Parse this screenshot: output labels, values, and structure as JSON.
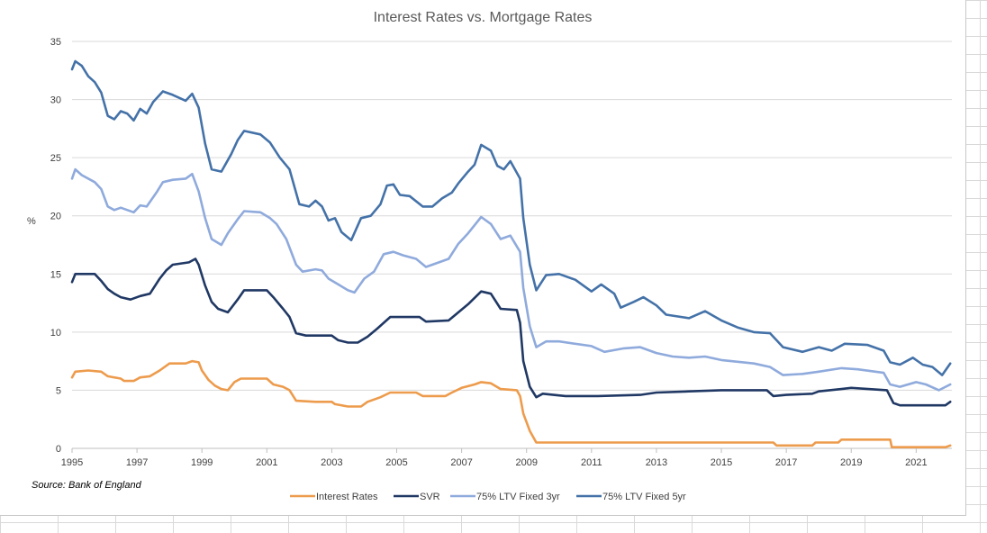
{
  "chart_data": {
    "type": "line",
    "title": "Interest Rates vs. Mortgage Rates",
    "ylabel": "%",
    "source": "Source: Bank of England",
    "ylim": [
      0,
      35
    ],
    "yticks": [
      0,
      5,
      10,
      15,
      20,
      25,
      30,
      35
    ],
    "xlim": [
      1995,
      2022.1
    ],
    "xticks": [
      1995,
      1997,
      1999,
      2001,
      2003,
      2005,
      2007,
      2009,
      2011,
      2013,
      2015,
      2017,
      2019,
      2021
    ],
    "grid": "horizontal",
    "legend_position": "bottom",
    "series": [
      {
        "name": "Interest Rates",
        "color": "#ed9b4c",
        "points": [
          [
            1995,
            6.1
          ],
          [
            1995.1,
            6.6
          ],
          [
            1995.5,
            6.7
          ],
          [
            1995.9,
            6.6
          ],
          [
            1996.1,
            6.2
          ],
          [
            1996.5,
            6.0
          ],
          [
            1996.6,
            5.8
          ],
          [
            1996.9,
            5.8
          ],
          [
            1997.1,
            6.1
          ],
          [
            1997.4,
            6.2
          ],
          [
            1997.7,
            6.7
          ],
          [
            1998,
            7.3
          ],
          [
            1998.5,
            7.3
          ],
          [
            1998.7,
            7.5
          ],
          [
            1998.9,
            7.4
          ],
          [
            1999,
            6.7
          ],
          [
            1999.2,
            5.9
          ],
          [
            1999.4,
            5.4
          ],
          [
            1999.6,
            5.1
          ],
          [
            1999.8,
            5.0
          ],
          [
            2000,
            5.7
          ],
          [
            2000.2,
            6.0
          ],
          [
            2001,
            6.0
          ],
          [
            2001.2,
            5.5
          ],
          [
            2001.5,
            5.3
          ],
          [
            2001.7,
            5.0
          ],
          [
            2001.9,
            4.1
          ],
          [
            2002.5,
            4.0
          ],
          [
            2003,
            4.0
          ],
          [
            2003.1,
            3.8
          ],
          [
            2003.5,
            3.6
          ],
          [
            2003.9,
            3.6
          ],
          [
            2004.1,
            4.0
          ],
          [
            2004.5,
            4.4
          ],
          [
            2004.8,
            4.8
          ],
          [
            2005.6,
            4.8
          ],
          [
            2005.8,
            4.5
          ],
          [
            2006.5,
            4.5
          ],
          [
            2006.7,
            4.8
          ],
          [
            2007,
            5.2
          ],
          [
            2007.4,
            5.5
          ],
          [
            2007.6,
            5.7
          ],
          [
            2007.9,
            5.6
          ],
          [
            2008.2,
            5.1
          ],
          [
            2008.7,
            5.0
          ],
          [
            2008.8,
            4.5
          ],
          [
            2008.9,
            3.0
          ],
          [
            2009.1,
            1.5
          ],
          [
            2009.3,
            0.5
          ],
          [
            2016.6,
            0.5
          ],
          [
            2016.7,
            0.25
          ],
          [
            2017.8,
            0.25
          ],
          [
            2017.9,
            0.5
          ],
          [
            2018.6,
            0.5
          ],
          [
            2018.7,
            0.75
          ],
          [
            2020.2,
            0.75
          ],
          [
            2020.25,
            0.1
          ],
          [
            2021.9,
            0.1
          ],
          [
            2022.05,
            0.25
          ]
        ]
      },
      {
        "name": "SVR",
        "color": "#203864",
        "points": [
          [
            1995,
            14.3
          ],
          [
            1995.1,
            15.0
          ],
          [
            1995.7,
            15.0
          ],
          [
            1995.9,
            14.4
          ],
          [
            1996.1,
            13.7
          ],
          [
            1996.3,
            13.3
          ],
          [
            1996.5,
            13.0
          ],
          [
            1996.8,
            12.8
          ],
          [
            1997.1,
            13.1
          ],
          [
            1997.4,
            13.3
          ],
          [
            1997.7,
            14.6
          ],
          [
            1997.9,
            15.3
          ],
          [
            1998.1,
            15.8
          ],
          [
            1998.6,
            16.0
          ],
          [
            1998.8,
            16.3
          ],
          [
            1998.9,
            15.8
          ],
          [
            1999.1,
            14.0
          ],
          [
            1999.3,
            12.6
          ],
          [
            1999.5,
            12.0
          ],
          [
            1999.8,
            11.7
          ],
          [
            2000.1,
            12.8
          ],
          [
            2000.3,
            13.6
          ],
          [
            2001,
            13.6
          ],
          [
            2001.2,
            13.0
          ],
          [
            2001.5,
            12.0
          ],
          [
            2001.7,
            11.3
          ],
          [
            2001.9,
            9.9
          ],
          [
            2002.2,
            9.7
          ],
          [
            2003,
            9.7
          ],
          [
            2003.2,
            9.3
          ],
          [
            2003.5,
            9.1
          ],
          [
            2003.8,
            9.1
          ],
          [
            2004.1,
            9.6
          ],
          [
            2004.4,
            10.3
          ],
          [
            2004.8,
            11.3
          ],
          [
            2005.7,
            11.3
          ],
          [
            2005.9,
            10.9
          ],
          [
            2006.6,
            11.0
          ],
          [
            2006.9,
            11.7
          ],
          [
            2007.2,
            12.4
          ],
          [
            2007.6,
            13.5
          ],
          [
            2007.9,
            13.3
          ],
          [
            2008.2,
            12.0
          ],
          [
            2008.7,
            11.9
          ],
          [
            2008.8,
            10.8
          ],
          [
            2008.9,
            7.5
          ],
          [
            2009.1,
            5.3
          ],
          [
            2009.3,
            4.4
          ],
          [
            2009.5,
            4.7
          ],
          [
            2010.2,
            4.5
          ],
          [
            2011.2,
            4.5
          ],
          [
            2012.5,
            4.6
          ],
          [
            2013,
            4.8
          ],
          [
            2014,
            4.9
          ],
          [
            2015,
            5.0
          ],
          [
            2016.4,
            5.0
          ],
          [
            2016.6,
            4.5
          ],
          [
            2017,
            4.6
          ],
          [
            2017.8,
            4.7
          ],
          [
            2018,
            4.9
          ],
          [
            2018.7,
            5.1
          ],
          [
            2019,
            5.2
          ],
          [
            2020.1,
            5.0
          ],
          [
            2020.3,
            3.9
          ],
          [
            2020.5,
            3.7
          ],
          [
            2021.9,
            3.7
          ],
          [
            2022.05,
            4.0
          ]
        ]
      },
      {
        "name": "75% LTV Fixed 3yr",
        "color": "#8faadc",
        "points": [
          [
            1995,
            23.2
          ],
          [
            1995.1,
            24.0
          ],
          [
            1995.3,
            23.5
          ],
          [
            1995.7,
            22.9
          ],
          [
            1995.9,
            22.3
          ],
          [
            1996.1,
            20.8
          ],
          [
            1996.3,
            20.5
          ],
          [
            1996.5,
            20.7
          ],
          [
            1996.9,
            20.3
          ],
          [
            1997.1,
            20.9
          ],
          [
            1997.3,
            20.8
          ],
          [
            1997.6,
            22.0
          ],
          [
            1997.8,
            22.9
          ],
          [
            1998.1,
            23.1
          ],
          [
            1998.5,
            23.2
          ],
          [
            1998.7,
            23.6
          ],
          [
            1998.9,
            22.1
          ],
          [
            1999.1,
            19.8
          ],
          [
            1999.3,
            18.0
          ],
          [
            1999.6,
            17.5
          ],
          [
            1999.8,
            18.5
          ],
          [
            2000.1,
            19.7
          ],
          [
            2000.3,
            20.4
          ],
          [
            2000.8,
            20.3
          ],
          [
            2001.1,
            19.8
          ],
          [
            2001.3,
            19.3
          ],
          [
            2001.6,
            18.0
          ],
          [
            2001.9,
            15.8
          ],
          [
            2002.1,
            15.2
          ],
          [
            2002.5,
            15.4
          ],
          [
            2002.7,
            15.3
          ],
          [
            2002.9,
            14.6
          ],
          [
            2003.2,
            14.1
          ],
          [
            2003.5,
            13.6
          ],
          [
            2003.7,
            13.4
          ],
          [
            2004,
            14.6
          ],
          [
            2004.3,
            15.2
          ],
          [
            2004.6,
            16.7
          ],
          [
            2004.9,
            16.9
          ],
          [
            2005.2,
            16.6
          ],
          [
            2005.6,
            16.3
          ],
          [
            2005.9,
            15.6
          ],
          [
            2006.3,
            16.0
          ],
          [
            2006.6,
            16.3
          ],
          [
            2006.9,
            17.6
          ],
          [
            2007.2,
            18.5
          ],
          [
            2007.6,
            19.9
          ],
          [
            2007.9,
            19.3
          ],
          [
            2008.2,
            18.0
          ],
          [
            2008.5,
            18.3
          ],
          [
            2008.8,
            16.9
          ],
          [
            2008.9,
            13.8
          ],
          [
            2009.1,
            10.5
          ],
          [
            2009.3,
            8.7
          ],
          [
            2009.6,
            9.2
          ],
          [
            2010,
            9.2
          ],
          [
            2011,
            8.8
          ],
          [
            2011.4,
            8.3
          ],
          [
            2012,
            8.6
          ],
          [
            2012.5,
            8.7
          ],
          [
            2013,
            8.2
          ],
          [
            2013.5,
            7.9
          ],
          [
            2014,
            7.8
          ],
          [
            2014.5,
            7.9
          ],
          [
            2015,
            7.6
          ],
          [
            2016,
            7.3
          ],
          [
            2016.5,
            7.0
          ],
          [
            2016.9,
            6.3
          ],
          [
            2017.5,
            6.4
          ],
          [
            2018,
            6.6
          ],
          [
            2018.7,
            6.9
          ],
          [
            2019.2,
            6.8
          ],
          [
            2020,
            6.5
          ],
          [
            2020.2,
            5.5
          ],
          [
            2020.5,
            5.3
          ],
          [
            2021,
            5.7
          ],
          [
            2021.3,
            5.5
          ],
          [
            2021.7,
            5.0
          ],
          [
            2022.05,
            5.5
          ]
        ]
      },
      {
        "name": "75% LTV Fixed 5yr",
        "color": "#4472a8",
        "points": [
          [
            1995,
            32.6
          ],
          [
            1995.1,
            33.3
          ],
          [
            1995.3,
            32.9
          ],
          [
            1995.5,
            32.0
          ],
          [
            1995.7,
            31.5
          ],
          [
            1995.9,
            30.6
          ],
          [
            1996.1,
            28.6
          ],
          [
            1996.3,
            28.3
          ],
          [
            1996.5,
            29.0
          ],
          [
            1996.7,
            28.8
          ],
          [
            1996.9,
            28.2
          ],
          [
            1997.1,
            29.2
          ],
          [
            1997.3,
            28.8
          ],
          [
            1997.5,
            29.8
          ],
          [
            1997.8,
            30.7
          ],
          [
            1998.1,
            30.4
          ],
          [
            1998.5,
            29.9
          ],
          [
            1998.7,
            30.5
          ],
          [
            1998.9,
            29.3
          ],
          [
            1999.1,
            26.2
          ],
          [
            1999.3,
            24.0
          ],
          [
            1999.6,
            23.8
          ],
          [
            1999.9,
            25.3
          ],
          [
            2000.1,
            26.5
          ],
          [
            2000.3,
            27.3
          ],
          [
            2000.8,
            27.0
          ],
          [
            2001.1,
            26.3
          ],
          [
            2001.4,
            25.0
          ],
          [
            2001.7,
            24.0
          ],
          [
            2002,
            21.0
          ],
          [
            2002.3,
            20.8
          ],
          [
            2002.5,
            21.3
          ],
          [
            2002.7,
            20.8
          ],
          [
            2002.9,
            19.6
          ],
          [
            2003.1,
            19.8
          ],
          [
            2003.3,
            18.6
          ],
          [
            2003.6,
            17.9
          ],
          [
            2003.9,
            19.8
          ],
          [
            2004.2,
            20.0
          ],
          [
            2004.5,
            21.0
          ],
          [
            2004.7,
            22.6
          ],
          [
            2004.9,
            22.7
          ],
          [
            2005.1,
            21.8
          ],
          [
            2005.4,
            21.7
          ],
          [
            2005.8,
            20.8
          ],
          [
            2006.1,
            20.8
          ],
          [
            2006.4,
            21.5
          ],
          [
            2006.7,
            22.0
          ],
          [
            2006.9,
            22.8
          ],
          [
            2007.2,
            23.8
          ],
          [
            2007.4,
            24.4
          ],
          [
            2007.6,
            26.1
          ],
          [
            2007.9,
            25.6
          ],
          [
            2008.1,
            24.3
          ],
          [
            2008.3,
            24.0
          ],
          [
            2008.5,
            24.7
          ],
          [
            2008.8,
            23.2
          ],
          [
            2008.9,
            19.8
          ],
          [
            2009.1,
            15.8
          ],
          [
            2009.3,
            13.6
          ],
          [
            2009.6,
            14.9
          ],
          [
            2010,
            15.0
          ],
          [
            2010.5,
            14.5
          ],
          [
            2011,
            13.5
          ],
          [
            2011.3,
            14.1
          ],
          [
            2011.7,
            13.3
          ],
          [
            2011.9,
            12.1
          ],
          [
            2012.3,
            12.6
          ],
          [
            2012.6,
            13.0
          ],
          [
            2013,
            12.3
          ],
          [
            2013.3,
            11.5
          ],
          [
            2014,
            11.2
          ],
          [
            2014.5,
            11.8
          ],
          [
            2015,
            11.0
          ],
          [
            2015.5,
            10.4
          ],
          [
            2016,
            10.0
          ],
          [
            2016.5,
            9.9
          ],
          [
            2016.9,
            8.7
          ],
          [
            2017.5,
            8.3
          ],
          [
            2018,
            8.7
          ],
          [
            2018.4,
            8.4
          ],
          [
            2018.8,
            9.0
          ],
          [
            2019.5,
            8.9
          ],
          [
            2020,
            8.4
          ],
          [
            2020.2,
            7.4
          ],
          [
            2020.5,
            7.2
          ],
          [
            2020.9,
            7.8
          ],
          [
            2021.2,
            7.2
          ],
          [
            2021.5,
            7.0
          ],
          [
            2021.8,
            6.3
          ],
          [
            2022.05,
            7.3
          ]
        ]
      }
    ]
  }
}
